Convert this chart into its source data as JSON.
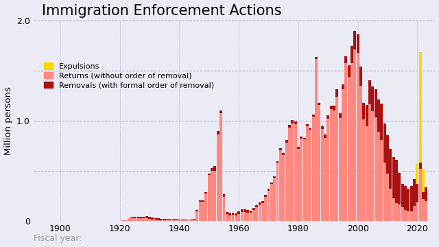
{
  "title": "Immigration Enforcement Actions",
  "xlabel": "Fiscal year:",
  "ylabel": "Million persons",
  "background_color": "#eaebf4",
  "color_returns": "#FF8880",
  "color_removals": "#AA1111",
  "color_expulsions": "#FFD700",
  "ylim": [
    0,
    2.0
  ],
  "yticks": [
    0,
    0.5,
    1.0,
    1.5,
    2.0
  ],
  "ytick_labels": [
    "0",
    "",
    "1.0",
    "",
    "2.0"
  ],
  "xticks": [
    1900,
    1920,
    1940,
    1960,
    1980,
    2000,
    2020
  ],
  "years": [
    1892,
    1893,
    1894,
    1895,
    1896,
    1897,
    1898,
    1899,
    1900,
    1901,
    1902,
    1903,
    1904,
    1905,
    1906,
    1907,
    1908,
    1909,
    1910,
    1911,
    1912,
    1913,
    1914,
    1915,
    1916,
    1917,
    1918,
    1919,
    1920,
    1921,
    1922,
    1923,
    1924,
    1925,
    1926,
    1927,
    1928,
    1929,
    1930,
    1931,
    1932,
    1933,
    1934,
    1935,
    1936,
    1937,
    1938,
    1939,
    1940,
    1941,
    1942,
    1943,
    1944,
    1945,
    1946,
    1947,
    1948,
    1949,
    1950,
    1951,
    1952,
    1953,
    1954,
    1955,
    1956,
    1957,
    1958,
    1959,
    1960,
    1961,
    1962,
    1963,
    1964,
    1965,
    1966,
    1967,
    1968,
    1969,
    1970,
    1971,
    1972,
    1973,
    1974,
    1975,
    1976,
    1977,
    1978,
    1979,
    1980,
    1981,
    1982,
    1983,
    1984,
    1985,
    1986,
    1987,
    1988,
    1989,
    1990,
    1991,
    1992,
    1993,
    1994,
    1995,
    1996,
    1997,
    1998,
    1999,
    2000,
    2001,
    2002,
    2003,
    2004,
    2005,
    2006,
    2007,
    2008,
    2009,
    2010,
    2011,
    2012,
    2013,
    2014,
    2015,
    2016,
    2017,
    2018,
    2019,
    2020,
    2021,
    2022,
    2023
  ],
  "returns": [
    0.0,
    0.0,
    0.0,
    0.0,
    0.001,
    0.001,
    0.001,
    0.001,
    0.001,
    0.001,
    0.001,
    0.001,
    0.001,
    0.001,
    0.001,
    0.001,
    0.002,
    0.002,
    0.002,
    0.002,
    0.002,
    0.002,
    0.002,
    0.002,
    0.002,
    0.002,
    0.002,
    0.002,
    0.002,
    0.005,
    0.01,
    0.03,
    0.036,
    0.03,
    0.03,
    0.028,
    0.028,
    0.03,
    0.025,
    0.018,
    0.012,
    0.011,
    0.011,
    0.011,
    0.012,
    0.012,
    0.013,
    0.013,
    0.01,
    0.01,
    0.011,
    0.012,
    0.009,
    0.012,
    0.1,
    0.193,
    0.192,
    0.276,
    0.458,
    0.501,
    0.501,
    0.865,
    1.074,
    0.241,
    0.073,
    0.059,
    0.06,
    0.055,
    0.07,
    0.088,
    0.092,
    0.086,
    0.083,
    0.11,
    0.138,
    0.162,
    0.179,
    0.24,
    0.303,
    0.369,
    0.43,
    0.577,
    0.709,
    0.655,
    0.778,
    0.931,
    0.976,
    0.966,
    0.719,
    0.823,
    0.817,
    0.948,
    0.908,
    1.04,
    1.615,
    1.156,
    0.918,
    0.83,
    1.022,
    1.116,
    1.105,
    1.243,
    1.029,
    1.313,
    1.572,
    1.44,
    1.573,
    1.713,
    1.675,
    1.349,
    1.011,
    0.944,
    1.165,
    1.094,
    1.036,
    0.891,
    0.811,
    0.582,
    0.473,
    0.323,
    0.229,
    0.178,
    0.163,
    0.135,
    0.11,
    0.095,
    0.097,
    0.151,
    0.183,
    0.523,
    0.219,
    0.197
  ],
  "removals": [
    0.0,
    0.0,
    0.0,
    0.0,
    0.0,
    0.0,
    0.0,
    0.0,
    0.0,
    0.0,
    0.0,
    0.0,
    0.0,
    0.0,
    0.0,
    0.0,
    0.0,
    0.0,
    0.0,
    0.0,
    0.0,
    0.0,
    0.0,
    0.0,
    0.0,
    0.0,
    0.0,
    0.0,
    0.0,
    0.0,
    0.001,
    0.002,
    0.006,
    0.009,
    0.01,
    0.012,
    0.012,
    0.019,
    0.016,
    0.018,
    0.019,
    0.019,
    0.008,
    0.008,
    0.009,
    0.009,
    0.009,
    0.009,
    0.008,
    0.007,
    0.005,
    0.004,
    0.004,
    0.007,
    0.01,
    0.013,
    0.017,
    0.014,
    0.018,
    0.027,
    0.05,
    0.036,
    0.027,
    0.026,
    0.02,
    0.026,
    0.025,
    0.025,
    0.025,
    0.029,
    0.027,
    0.025,
    0.024,
    0.024,
    0.024,
    0.022,
    0.022,
    0.021,
    0.017,
    0.017,
    0.016,
    0.017,
    0.018,
    0.024,
    0.03,
    0.031,
    0.029,
    0.026,
    0.018,
    0.017,
    0.015,
    0.019,
    0.018,
    0.023,
    0.024,
    0.024,
    0.025,
    0.034,
    0.03,
    0.033,
    0.044,
    0.072,
    0.046,
    0.051,
    0.07,
    0.115,
    0.174,
    0.184,
    0.189,
    0.189,
    0.165,
    0.212,
    0.24,
    0.246,
    0.281,
    0.319,
    0.36,
    0.393,
    0.387,
    0.397,
    0.409,
    0.435,
    0.315,
    0.235,
    0.241,
    0.226,
    0.256,
    0.267,
    0.186,
    0.06,
    0.072,
    0.142
  ],
  "expulsions": [
    0,
    0,
    0,
    0,
    0,
    0,
    0,
    0,
    0,
    0,
    0,
    0,
    0,
    0,
    0,
    0,
    0,
    0,
    0,
    0,
    0,
    0,
    0,
    0,
    0,
    0,
    0,
    0,
    0,
    0,
    0,
    0,
    0,
    0,
    0,
    0,
    0,
    0,
    0,
    0,
    0,
    0,
    0,
    0,
    0,
    0,
    0,
    0,
    0,
    0,
    0,
    0,
    0,
    0,
    0,
    0,
    0,
    0,
    0,
    0,
    0,
    0,
    0,
    0,
    0,
    0,
    0,
    0,
    0,
    0,
    0,
    0,
    0,
    0,
    0,
    0,
    0,
    0,
    0,
    0,
    0,
    0,
    0,
    0,
    0,
    0,
    0,
    0,
    0,
    0,
    0,
    0,
    0,
    0,
    0,
    0,
    0,
    0,
    0,
    0,
    0,
    0,
    0,
    0,
    0,
    0,
    0,
    0,
    0,
    0,
    0,
    0,
    0,
    0,
    0,
    0,
    0,
    0,
    0,
    0,
    0,
    0,
    0,
    0,
    0,
    0,
    0,
    0,
    0.197,
    1.1,
    0.23,
    0.0
  ]
}
